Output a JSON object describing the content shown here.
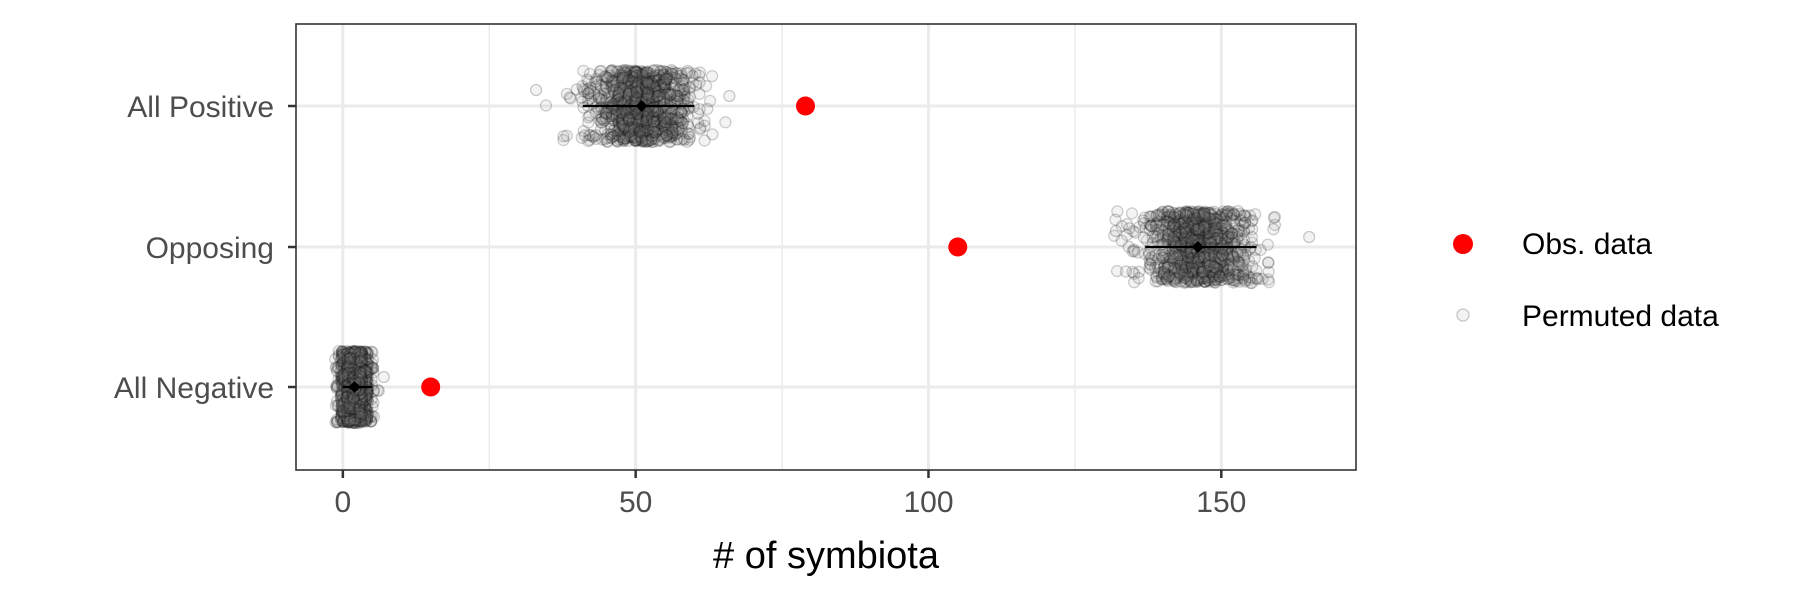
{
  "chart_data": {
    "type": "scatter",
    "orientation": "horizontal",
    "xlabel": "# of symbiota",
    "ylabel": "",
    "xlim": [
      -8,
      173
    ],
    "x_ticks": [
      0,
      50,
      100,
      150
    ],
    "x_minor_ticks": [
      25,
      75,
      125
    ],
    "categories": [
      "All Positive",
      "Opposing",
      "All Negative"
    ],
    "grid": true,
    "legend_position": "right",
    "series": [
      {
        "name": "Obs. data",
        "color": "#ff0000",
        "points": [
          {
            "category": "All Positive",
            "x": 79
          },
          {
            "category": "Opposing",
            "x": 105
          },
          {
            "category": "All Negative",
            "x": 15
          }
        ]
      },
      {
        "name": "Permuted data",
        "color": "#000000",
        "distributions": [
          {
            "category": "All Positive",
            "mean": 51,
            "sd": 4.5,
            "min": 33,
            "max": 66,
            "interval": [
              41,
              60
            ]
          },
          {
            "category": "Opposing",
            "mean": 146,
            "sd": 4.5,
            "min": 132,
            "max": 165,
            "interval": [
              137,
              156
            ]
          },
          {
            "category": "All Negative",
            "mean": 2,
            "sd": 1.3,
            "min": -1,
            "max": 7,
            "interval": [
              0,
              5
            ]
          }
        ]
      }
    ]
  }
}
